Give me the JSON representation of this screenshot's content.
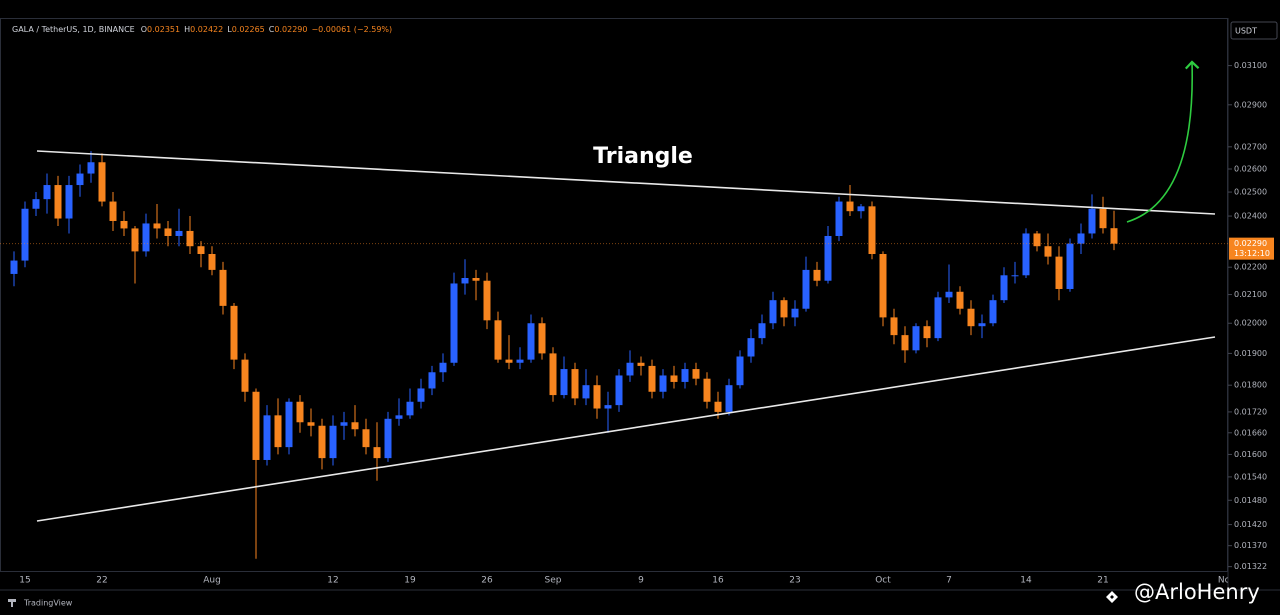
{
  "chart_data": {
    "type": "candlestick",
    "header": {
      "symbol": "GALA / TetherUS, 1D, BINANCE",
      "fields": [
        {
          "key": "O",
          "value": "0.02351"
        },
        {
          "key": "H",
          "value": "0.02422"
        },
        {
          "key": "L",
          "value": "0.02265"
        },
        {
          "key": "C",
          "value": "0.02290"
        }
      ],
      "change": "−0.00061 (−2.59%)"
    },
    "currency": "USDT",
    "annotation": "Triangle",
    "price_label": {
      "value": 0.0229,
      "label": "0.02290"
    },
    "countdown": "13:12:10",
    "brand": "TradingView",
    "watermark": "@ArloHenry",
    "up_color": "#2962ff",
    "down_color": "#f7851f",
    "log_scale": true,
    "grid": false,
    "ylim": [
      0.0131,
      0.0335
    ],
    "yticks": [
      {
        "value": 0.031,
        "label": "0.03100"
      },
      {
        "value": 0.029,
        "label": "0.02900"
      },
      {
        "value": 0.027,
        "label": "0.02700"
      },
      {
        "value": 0.026,
        "label": "0.02600"
      },
      {
        "value": 0.025,
        "label": "0.02500"
      },
      {
        "value": 0.024,
        "label": "0.02400"
      },
      {
        "value": 0.022,
        "label": "0.02200"
      },
      {
        "value": 0.021,
        "label": "0.02100"
      },
      {
        "value": 0.02,
        "label": "0.02000"
      },
      {
        "value": 0.019,
        "label": "0.01900"
      },
      {
        "value": 0.018,
        "label": "0.01800"
      },
      {
        "value": 0.0172,
        "label": "0.01720"
      },
      {
        "value": 0.0166,
        "label": "0.01660"
      },
      {
        "value": 0.016,
        "label": "0.01600"
      },
      {
        "value": 0.0154,
        "label": "0.01540"
      },
      {
        "value": 0.0148,
        "label": "0.01480"
      },
      {
        "value": 0.0142,
        "label": "0.01420"
      },
      {
        "value": 0.0137,
        "label": "0.01370"
      },
      {
        "value": 0.01322,
        "label": "0.01322"
      }
    ],
    "categories": [
      null,
      "15",
      null,
      null,
      null,
      null,
      null,
      null,
      "22",
      null,
      null,
      null,
      null,
      null,
      null,
      null,
      null,
      null,
      "Aug",
      null,
      null,
      null,
      null,
      null,
      null,
      null,
      null,
      null,
      null,
      "12",
      null,
      null,
      null,
      null,
      null,
      null,
      "19",
      null,
      null,
      null,
      null,
      null,
      null,
      "26",
      null,
      null,
      null,
      null,
      null,
      "Sep",
      null,
      null,
      null,
      null,
      null,
      null,
      null,
      "9",
      null,
      null,
      null,
      null,
      null,
      null,
      "16",
      null,
      null,
      null,
      null,
      null,
      null,
      "23",
      null,
      null,
      null,
      null,
      null,
      null,
      null,
      "Oct",
      null,
      null,
      null,
      null,
      null,
      "7",
      null,
      null,
      null,
      null,
      null,
      null,
      "14",
      null,
      null,
      null,
      null,
      null,
      null,
      "21",
      null,
      null,
      null,
      null,
      null,
      null,
      null,
      null,
      null,
      null,
      "No"
    ],
    "open": [
      0.02175,
      0.02225,
      0.0243,
      0.0247,
      0.0253,
      0.0239,
      0.0253,
      0.0258,
      0.0263,
      0.0246,
      0.0238,
      0.0235,
      0.0226,
      0.0237,
      0.0235,
      0.0232,
      0.0234,
      0.0228,
      0.0225,
      0.0219,
      0.0206,
      0.0188,
      0.0178,
      0.01585,
      0.0171,
      0.0162,
      0.0175,
      0.0169,
      0.0168,
      0.0159,
      0.0168,
      0.0169,
      0.0167,
      0.0162,
      0.0159,
      0.017,
      0.0171,
      0.0175,
      0.0179,
      0.0184,
      0.0187,
      0.0214,
      0.0216,
      0.0215,
      0.0201,
      0.0188,
      0.0187,
      0.0188,
      0.02,
      0.019,
      0.0177,
      0.0185,
      0.0176,
      0.018,
      0.0173,
      0.0174,
      0.0183,
      0.0187,
      0.0186,
      0.0178,
      0.0183,
      0.0181,
      0.0185,
      0.0182,
      0.0175,
      0.0172,
      0.018,
      0.0189,
      0.0195,
      0.02,
      0.0208,
      0.0202,
      0.0205,
      0.0219,
      0.0215,
      0.0232,
      0.0246,
      0.0242,
      0.0244,
      0.0225,
      0.0202,
      0.0196,
      0.0191,
      0.0199,
      0.0195,
      0.0209,
      0.0211,
      0.0205,
      0.0199,
      0.02,
      0.0208,
      0.0217,
      0.0217,
      0.0233,
      0.0228,
      0.0224,
      0.0212,
      0.0229,
      0.0233,
      0.0243,
      0.02351,
      null,
      null,
      null,
      null,
      null,
      null,
      null,
      null,
      null,
      null
    ],
    "high": [
      0.0226,
      0.0246,
      0.025,
      0.0258,
      0.0257,
      0.0257,
      0.0262,
      0.0268,
      0.0267,
      0.025,
      0.0242,
      0.0236,
      0.0241,
      0.0245,
      0.0238,
      0.0243,
      0.024,
      0.023,
      0.0228,
      0.0222,
      0.0207,
      0.019,
      0.0179,
      0.0174,
      0.0176,
      0.0176,
      0.0177,
      0.0173,
      0.017,
      0.0171,
      0.0172,
      0.0174,
      0.017,
      0.0169,
      0.0172,
      0.0176,
      0.0179,
      0.0182,
      0.0186,
      0.019,
      0.0218,
      0.0223,
      0.0219,
      0.0218,
      0.0204,
      0.0196,
      0.0192,
      0.0203,
      0.0202,
      0.0192,
      0.0189,
      0.0187,
      0.0185,
      0.0183,
      0.0178,
      0.0185,
      0.0191,
      0.0189,
      0.0188,
      0.0185,
      0.0186,
      0.0187,
      0.0187,
      0.0184,
      0.0178,
      0.0182,
      0.0191,
      0.0198,
      0.0203,
      0.0211,
      0.0209,
      0.0208,
      0.0224,
      0.0222,
      0.0236,
      0.0248,
      0.0253,
      0.0245,
      0.0246,
      0.0226,
      0.0205,
      0.0199,
      0.02,
      0.0201,
      0.0211,
      0.0221,
      0.0213,
      0.0208,
      0.0203,
      0.021,
      0.022,
      0.0222,
      0.0235,
      0.0234,
      0.0233,
      0.0228,
      0.0231,
      0.0237,
      0.0249,
      0.0248,
      0.02422,
      null,
      null,
      null,
      null,
      null,
      null,
      null,
      null,
      null,
      null
    ],
    "low": [
      0.0213,
      0.022,
      0.024,
      0.0241,
      0.0236,
      0.0233,
      0.0248,
      0.0254,
      0.0244,
      0.0234,
      0.0232,
      0.0214,
      0.0224,
      0.0231,
      0.0228,
      0.0228,
      0.0225,
      0.022,
      0.0217,
      0.0203,
      0.0185,
      0.0175,
      0.0134,
      0.0157,
      0.016,
      0.016,
      0.0166,
      0.0165,
      0.0156,
      0.0157,
      0.0164,
      0.0165,
      0.016,
      0.0153,
      0.0158,
      0.0168,
      0.017,
      0.0173,
      0.0177,
      0.0181,
      0.0186,
      0.021,
      0.0208,
      0.0198,
      0.0187,
      0.0185,
      0.0185,
      0.0187,
      0.0188,
      0.0175,
      0.0176,
      0.0174,
      0.0174,
      0.017,
      0.0166,
      0.0172,
      0.0181,
      0.0183,
      0.0176,
      0.0176,
      0.0179,
      0.0179,
      0.018,
      0.0173,
      0.017,
      0.0171,
      0.0179,
      0.0187,
      0.0193,
      0.0198,
      0.0199,
      0.0199,
      0.0204,
      0.0213,
      0.0214,
      0.023,
      0.024,
      0.0239,
      0.0223,
      0.0199,
      0.0193,
      0.0187,
      0.019,
      0.0192,
      0.0194,
      0.0207,
      0.0203,
      0.0196,
      0.0195,
      0.0199,
      0.0207,
      0.0214,
      0.0216,
      0.0226,
      0.0221,
      0.0208,
      0.0211,
      0.0225,
      0.0231,
      0.0233,
      0.02265,
      null,
      null,
      null,
      null,
      null,
      null,
      null,
      null,
      null,
      null
    ],
    "close": [
      0.02225,
      0.0243,
      0.0247,
      0.0253,
      0.0239,
      0.0253,
      0.0258,
      0.0263,
      0.0246,
      0.0238,
      0.0235,
      0.0226,
      0.0237,
      0.0235,
      0.0232,
      0.0234,
      0.0228,
      0.0225,
      0.0219,
      0.0206,
      0.0188,
      0.0178,
      0.01585,
      0.0171,
      0.0162,
      0.0175,
      0.0169,
      0.0168,
      0.0159,
      0.0168,
      0.0169,
      0.0167,
      0.0162,
      0.0159,
      0.017,
      0.0171,
      0.0175,
      0.0179,
      0.0184,
      0.0187,
      0.0214,
      0.0216,
      0.0215,
      0.0201,
      0.0188,
      0.0187,
      0.0188,
      0.02,
      0.019,
      0.0177,
      0.0185,
      0.0176,
      0.018,
      0.0173,
      0.0174,
      0.0183,
      0.0187,
      0.0186,
      0.0178,
      0.0183,
      0.0181,
      0.0185,
      0.0182,
      0.0175,
      0.0172,
      0.018,
      0.0189,
      0.0195,
      0.02,
      0.0208,
      0.0202,
      0.0205,
      0.0219,
      0.0215,
      0.0232,
      0.0246,
      0.0242,
      0.0244,
      0.0225,
      0.0202,
      0.0196,
      0.0191,
      0.0199,
      0.0195,
      0.0209,
      0.0211,
      0.0205,
      0.0199,
      0.02,
      0.0208,
      0.0217,
      0.0217,
      0.0233,
      0.0228,
      0.0224,
      0.0212,
      0.0229,
      0.0233,
      0.0243,
      0.02351,
      0.0229,
      null,
      null,
      null,
      null,
      null,
      null,
      null,
      null,
      null,
      null
    ]
  }
}
